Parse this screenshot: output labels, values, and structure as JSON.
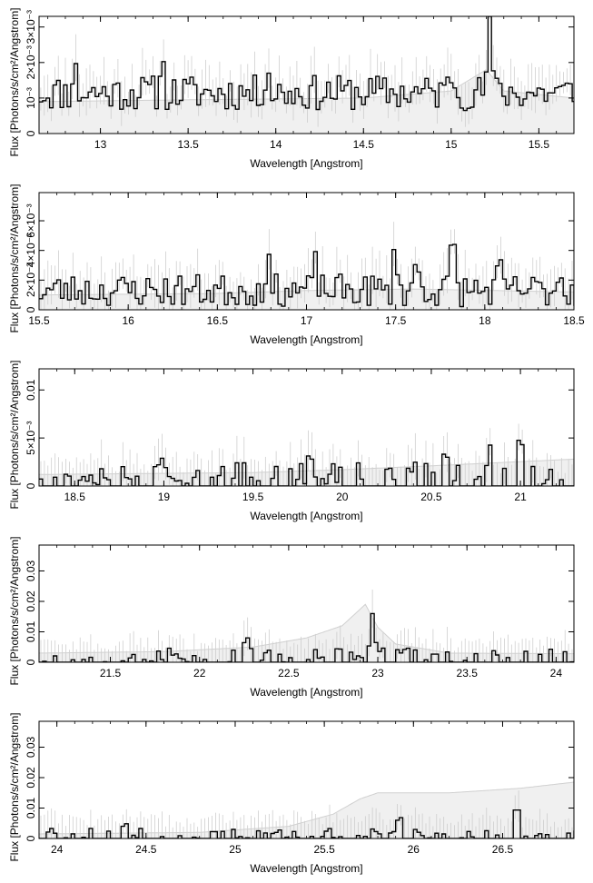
{
  "chart_data": [
    {
      "type": "line",
      "xlabel": "Wavelength [Angstrom]",
      "ylabel": "Flux [Photons/s/cm²/Angstrom]",
      "xlim": [
        12.65,
        15.7
      ],
      "ylim": [
        0,
        0.0033
      ],
      "x_ticks": [
        13,
        13.5,
        14,
        14.5,
        15,
        15.5
      ],
      "x_tick_labels": [
        "13",
        "13.5",
        "14",
        "14.5",
        "15",
        "15.5"
      ],
      "y_ticks": [
        0,
        0.001,
        0.002,
        0.003
      ],
      "y_tick_labels": [
        "0",
        "10⁻³",
        "2×10⁻³",
        "3×10⁻³"
      ],
      "bin_width": 0.02,
      "y_base": 0.0011,
      "y_noise": 0.0005,
      "error": 0.0006,
      "model": [
        [
          12.65,
          0.0009
        ],
        [
          13.5,
          0.00095
        ],
        [
          14.5,
          0.001
        ],
        [
          15.0,
          0.0012
        ],
        [
          15.2,
          0.0018
        ],
        [
          15.3,
          0.0012
        ],
        [
          15.7,
          0.001
        ]
      ],
      "peaks": [
        [
          15.22,
          0.0021
        ],
        [
          15.0,
          0.0006
        ],
        [
          12.85,
          0.0008
        ],
        [
          13.35,
          0.0009
        ],
        [
          13.95,
          0.0008
        ]
      ],
      "seed": 11,
      "grid": false
    },
    {
      "type": "line",
      "xlabel": "Wavelength [Angstrom]",
      "ylabel": "Flux [Photons/s/cm²/Angstrom]",
      "xlim": [
        15.5,
        18.5
      ],
      "ylim": [
        0,
        0.0079
      ],
      "x_ticks": [
        15.5,
        16,
        16.5,
        17,
        17.5,
        18,
        18.5
      ],
      "x_tick_labels": [
        "15.5",
        "16",
        "16.5",
        "17",
        "17.5",
        "18",
        "18.5"
      ],
      "y_ticks": [
        0,
        0.002,
        0.004,
        0.006
      ],
      "y_tick_labels": [
        "0",
        "2×10⁻³",
        "4×10⁻³",
        "6×10⁻³"
      ],
      "bin_width": 0.02,
      "y_base": 0.0012,
      "y_noise": 0.0011,
      "error": 0.0015,
      "model": [
        [
          15.5,
          0.001
        ],
        [
          16.5,
          0.0011
        ],
        [
          17.0,
          0.0013
        ],
        [
          17.6,
          0.0014
        ],
        [
          18.5,
          0.0012
        ]
      ],
      "peaks": [
        [
          16.78,
          0.0022
        ],
        [
          17.05,
          0.0016
        ],
        [
          17.5,
          0.0028
        ],
        [
          17.62,
          0.0022
        ],
        [
          17.82,
          0.0042
        ],
        [
          18.08,
          0.0016
        ],
        [
          18.42,
          0.0014
        ]
      ],
      "seed": 23,
      "grid": false
    },
    {
      "type": "line",
      "xlabel": "Wavelength [Angstrom]",
      "ylabel": "Flux [Photons/s/cm²/Angstrom]",
      "xlim": [
        18.3,
        21.3
      ],
      "ylim": [
        0,
        0.0122
      ],
      "x_ticks": [
        18.5,
        19,
        19.5,
        20,
        20.5,
        21
      ],
      "x_tick_labels": [
        "18.5",
        "19",
        "19.5",
        "20",
        "20.5",
        "21"
      ],
      "y_ticks": [
        0,
        0.005,
        0.01
      ],
      "y_tick_labels": [
        "0",
        "5×10⁻³",
        "0.01"
      ],
      "bin_width": 0.02,
      "y_base": 0.0011,
      "y_noise": 0.0011,
      "error": 0.0022,
      "model": [
        [
          18.3,
          0.0012
        ],
        [
          19.5,
          0.0014
        ],
        [
          20.0,
          0.0017
        ],
        [
          20.5,
          0.0021
        ],
        [
          21.3,
          0.0028
        ]
      ],
      "peaks": [
        [
          18.97,
          0.0022
        ],
        [
          19.83,
          0.0028
        ],
        [
          20.58,
          0.0045
        ],
        [
          20.82,
          0.0032
        ],
        [
          21.0,
          0.0058
        ]
      ],
      "seed": 37,
      "grid": false
    },
    {
      "type": "line",
      "xlabel": "Wavelength [Angstrom]",
      "ylabel": "Flux [Photons/s/cm²/Angstrom]",
      "xlim": [
        21.1,
        24.1
      ],
      "ylim": [
        0,
        0.0385
      ],
      "x_ticks": [
        21.5,
        22,
        22.5,
        23,
        23.5,
        24
      ],
      "x_tick_labels": [
        "21.5",
        "22",
        "22.5",
        "23",
        "23.5",
        "24"
      ],
      "y_ticks": [
        0,
        0.01,
        0.02,
        0.03
      ],
      "y_tick_labels": [
        "0",
        "0.01",
        "0.02",
        "0.03"
      ],
      "bin_width": 0.02,
      "y_base": 0.0018,
      "y_noise": 0.0022,
      "error": 0.006,
      "model": [
        [
          21.1,
          0.003
        ],
        [
          21.8,
          0.0035
        ],
        [
          22.3,
          0.005
        ],
        [
          22.6,
          0.008
        ],
        [
          22.8,
          0.012
        ],
        [
          22.93,
          0.019
        ],
        [
          23.0,
          0.0115
        ],
        [
          23.1,
          0.006
        ],
        [
          23.4,
          0.003
        ],
        [
          24.1,
          0.0028
        ]
      ],
      "peaks": [
        [
          22.27,
          0.008
        ],
        [
          22.97,
          0.016
        ],
        [
          23.32,
          0.004
        ]
      ],
      "seed": 53,
      "grid": false
    },
    {
      "type": "line",
      "xlabel": "Wavelength [Angstrom]",
      "ylabel": "Flux [Photons/s/cm²/Angstrom]",
      "xlim": [
        23.9,
        26.9
      ],
      "ylim": [
        0,
        0.0385
      ],
      "x_ticks": [
        24,
        24.5,
        25,
        25.5,
        26,
        26.5
      ],
      "x_tick_labels": [
        "24",
        "24.5",
        "25",
        "25.5",
        "26",
        "26.5"
      ],
      "y_ticks": [
        0,
        0.01,
        0.02,
        0.03
      ],
      "y_tick_labels": [
        "0",
        "0.01",
        "0.02",
        "0.03"
      ],
      "bin_width": 0.02,
      "y_base": 0.0008,
      "y_noise": 0.0022,
      "error": 0.006,
      "model": [
        [
          23.9,
          0.0015
        ],
        [
          24.8,
          0.002
        ],
        [
          25.3,
          0.004
        ],
        [
          25.55,
          0.008
        ],
        [
          25.7,
          0.013
        ],
        [
          25.8,
          0.015
        ],
        [
          26.2,
          0.015
        ],
        [
          26.6,
          0.0165
        ],
        [
          26.9,
          0.0185
        ]
      ],
      "peaks": [
        [
          24.38,
          0.006
        ],
        [
          25.92,
          0.009
        ],
        [
          26.58,
          0.014
        ]
      ],
      "seed": 71,
      "grid": false
    }
  ]
}
